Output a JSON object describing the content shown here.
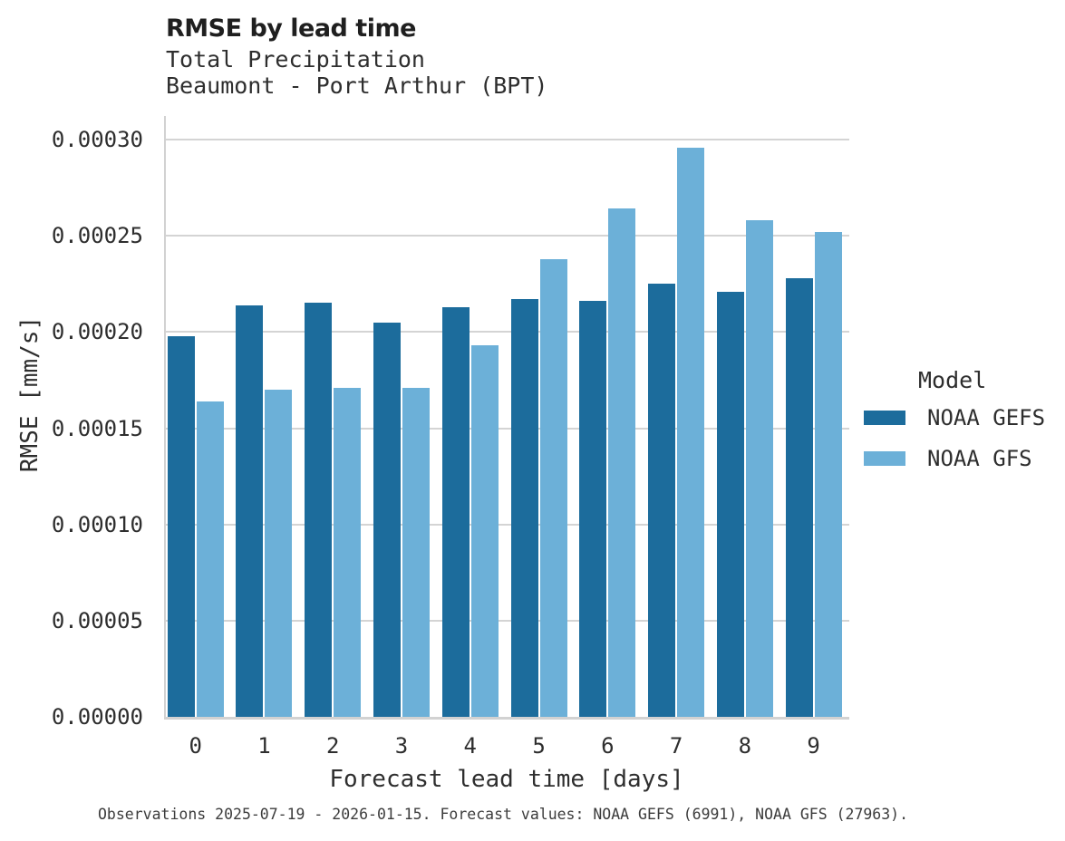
{
  "chart_data": {
    "type": "bar",
    "title": "RMSE by lead time",
    "subtitle_lines": [
      "Total Precipitation",
      "Beaumont - Port Arthur (BPT)"
    ],
    "xlabel": "Forecast lead time [days]",
    "ylabel": "RMSE [mm/s]",
    "categories": [
      "0",
      "1",
      "2",
      "3",
      "4",
      "5",
      "6",
      "7",
      "8",
      "9"
    ],
    "series": [
      {
        "name": "NOAA GEFS",
        "color": "#1c6c9c",
        "values": [
          0.000198,
          0.000214,
          0.000215,
          0.000205,
          0.000213,
          0.000217,
          0.000216,
          0.000225,
          0.000221,
          0.000228
        ]
      },
      {
        "name": "NOAA GFS",
        "color": "#6cb0d8",
        "values": [
          0.000164,
          0.00017,
          0.000171,
          0.000171,
          0.000193,
          0.000238,
          0.000264,
          0.000296,
          0.000258,
          0.000252
        ]
      }
    ],
    "ylim": [
      0,
      0.0003
    ],
    "yticks": [
      "0.00000",
      "0.00005",
      "0.00010",
      "0.00015",
      "0.00020",
      "0.00025",
      "0.00030"
    ],
    "grid": true,
    "legend_title": "Model",
    "legend_position": "right",
    "caption": "Observations 2025-07-19 - 2026-01-15. Forecast values: NOAA GEFS (6991), NOAA GFS (27963).",
    "colors": {
      "grid": "#d4d4d4",
      "axis": "#d2d2d2",
      "title_text": "#1f1f1f",
      "body_text": "#2e2e2e",
      "background": "#ffffff"
    }
  }
}
